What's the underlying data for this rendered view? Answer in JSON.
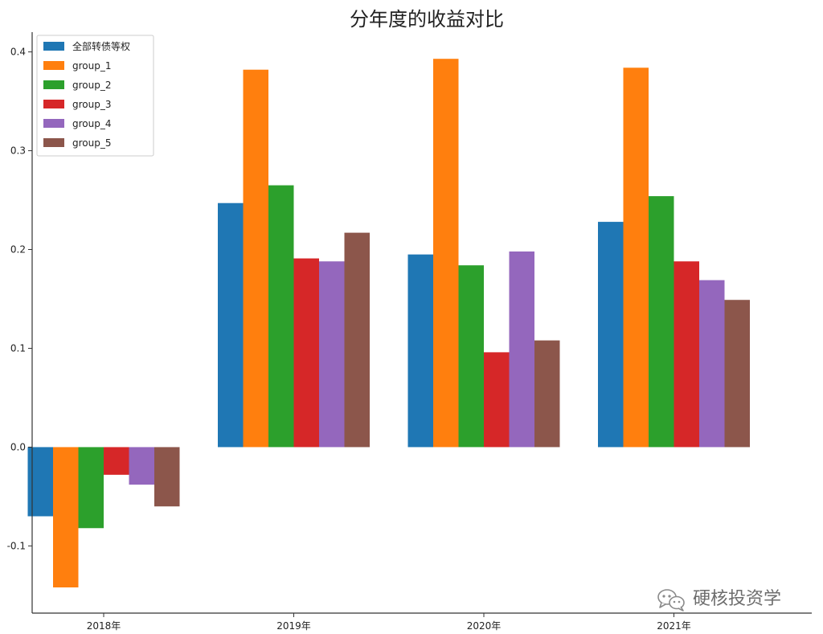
{
  "chart_data": {
    "type": "bar",
    "title": "分年度的收益对比",
    "xlabel": "",
    "ylabel": "",
    "categories": [
      "2018年",
      "2019年",
      "2020年",
      "2021年"
    ],
    "series": [
      {
        "name": "全部转债等权",
        "color": "#1f77b4",
        "values": [
          -0.07,
          0.247,
          0.195,
          0.228
        ]
      },
      {
        "name": "group_1",
        "color": "#ff7f0e",
        "values": [
          -0.142,
          0.382,
          0.393,
          0.384
        ]
      },
      {
        "name": "group_2",
        "color": "#2ca02c",
        "values": [
          -0.082,
          0.265,
          0.184,
          0.254
        ]
      },
      {
        "name": "group_3",
        "color": "#d62728",
        "values": [
          -0.028,
          0.191,
          0.096,
          0.188
        ]
      },
      {
        "name": "group_4",
        "color": "#9467bd",
        "values": [
          -0.038,
          0.188,
          0.198,
          0.169
        ]
      },
      {
        "name": "group_5",
        "color": "#8c564b",
        "values": [
          -0.06,
          0.217,
          0.108,
          0.149
        ]
      }
    ],
    "ylim": [
      -0.168,
      0.42
    ],
    "yticks": [
      {
        "value": -0.1,
        "label": "-0.1"
      },
      {
        "value": 0.0,
        "label": "0.0"
      },
      {
        "value": 0.1,
        "label": "0.1"
      },
      {
        "value": 0.2,
        "label": "0.2"
      },
      {
        "value": 0.3,
        "label": "0.3"
      },
      {
        "value": 0.4,
        "label": "0.4"
      }
    ],
    "legend_position": "top-left",
    "grid": false
  },
  "watermark": {
    "text": "硬核投资学",
    "icon": "wechat-icon"
  }
}
